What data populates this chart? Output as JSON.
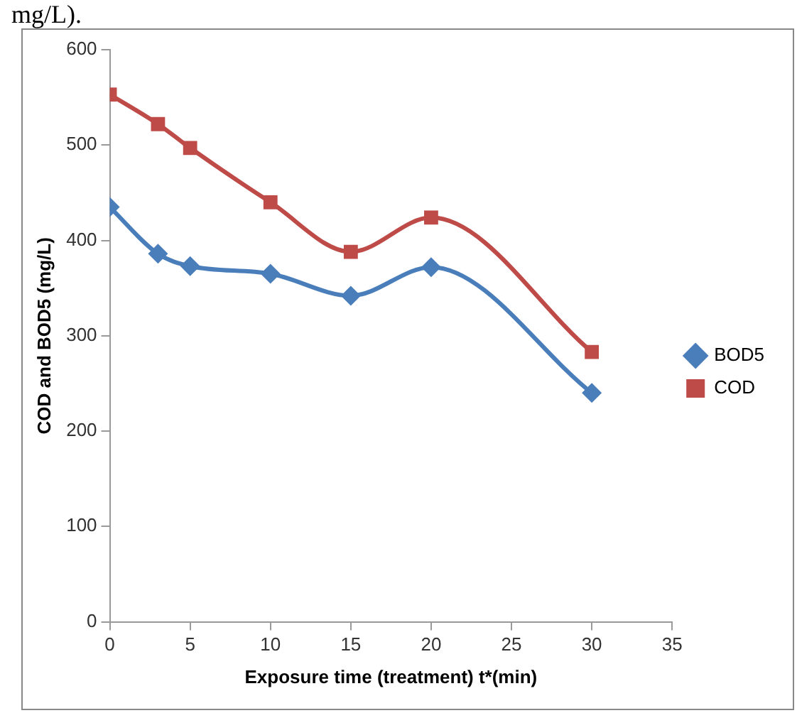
{
  "chart_data": {
    "type": "line",
    "xlabel": "Exposure time (treatment) t*(min)",
    "ylabel": "COD and BOD5 (mg/L)",
    "annotations": [
      "mg/L)."
    ],
    "series": [
      {
        "name": "BOD5",
        "color": "#4a7ebb",
        "marker": "diamond",
        "x": [
          0,
          3,
          5,
          10,
          15,
          20,
          30
        ],
        "values": [
          435,
          386,
          373,
          365,
          342,
          372,
          240
        ]
      },
      {
        "name": "COD",
        "color": "#be4b48",
        "marker": "square",
        "x": [
          0,
          3,
          5,
          10,
          15,
          20,
          30
        ],
        "values": [
          553,
          522,
          497,
          440,
          388,
          424,
          283
        ]
      }
    ],
    "xlim": [
      0,
      35
    ],
    "xticks": [
      0,
      5,
      10,
      15,
      20,
      25,
      30,
      35
    ],
    "ylim": [
      0,
      600
    ],
    "yticks": [
      0,
      100,
      200,
      300,
      400,
      500,
      600
    ],
    "grid": false,
    "legend": "right"
  }
}
